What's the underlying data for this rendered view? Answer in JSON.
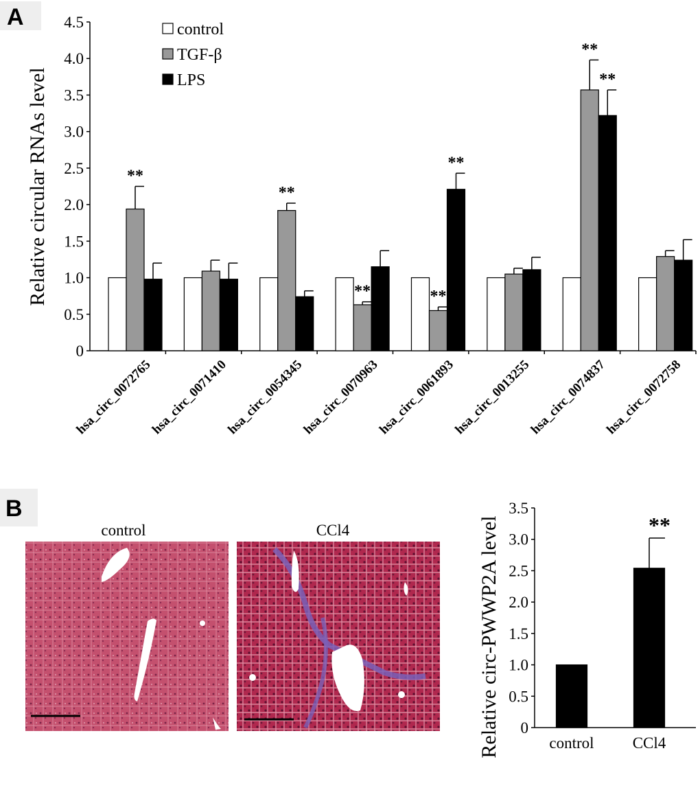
{
  "panels": {
    "a_label": "A",
    "b_label": "B"
  },
  "micrographs": {
    "left_title": "control",
    "right_title": "CCl4"
  },
  "chart_data": [
    {
      "type": "bar",
      "ylabel": "Relative circular RNAs level",
      "ylim": [
        0,
        4.5
      ],
      "yticks": [
        "0",
        "0.5",
        "1.0",
        "1.5",
        "2.0",
        "2.5",
        "3.0",
        "3.5",
        "4.0",
        "4.5"
      ],
      "categories": [
        "hsa_circ_0072765",
        "hsa_circ_0071410",
        "hsa_circ_0054345",
        "hsa_circ_0070963",
        "hsa_circ_0061893",
        "hsa_circ_0013255",
        "hsa_circ_0074837",
        "hsa_circ_0072758"
      ],
      "legend_position": "top-left",
      "significance_mark": "**",
      "series": [
        {
          "name": "control",
          "color": "#ffffff",
          "values": [
            1.0,
            1.0,
            1.0,
            1.0,
            1.0,
            1.0,
            1.0,
            1.0
          ],
          "errors": [
            0,
            0,
            0,
            0,
            0,
            0,
            0,
            0
          ],
          "significant": [
            false,
            false,
            false,
            false,
            false,
            false,
            false,
            false
          ]
        },
        {
          "name": "TGF-β",
          "color": "#999999",
          "values": [
            1.94,
            1.09,
            1.92,
            0.63,
            0.55,
            1.05,
            3.57,
            1.29
          ],
          "errors": [
            0.31,
            0.15,
            0.1,
            0.04,
            0.05,
            0.08,
            0.41,
            0.08
          ],
          "significant": [
            true,
            false,
            true,
            true,
            true,
            false,
            true,
            false
          ]
        },
        {
          "name": "LPS",
          "color": "#000000",
          "values": [
            0.98,
            0.98,
            0.74,
            1.15,
            2.21,
            1.11,
            3.22,
            1.24
          ],
          "errors": [
            0.22,
            0.22,
            0.08,
            0.22,
            0.22,
            0.17,
            0.35,
            0.28
          ],
          "significant": [
            false,
            false,
            false,
            false,
            true,
            false,
            true,
            false
          ]
        }
      ]
    },
    {
      "type": "bar",
      "ylabel": "Relative circ-PWWP2A level",
      "ylim": [
        0,
        3.5
      ],
      "yticks": [
        "0",
        "0.5",
        "1.0",
        "1.5",
        "2.0",
        "2.5",
        "3.0",
        "3.5"
      ],
      "categories": [
        "control",
        "CCl4"
      ],
      "significance_mark": "**",
      "values": [
        1.0,
        2.54
      ],
      "errors": [
        0,
        0.48
      ],
      "significant": [
        false,
        true
      ],
      "color": "#000000"
    }
  ]
}
